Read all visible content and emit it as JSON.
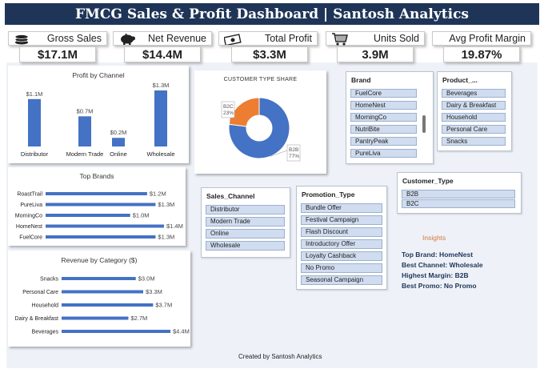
{
  "header": {
    "title": "FMCG Sales & Profit Dashboard | Santosh Analytics"
  },
  "kpis": [
    {
      "label": "Gross Sales",
      "value": "$17.1M",
      "icon": "coins-icon"
    },
    {
      "label": "Net Revenue",
      "value": "$14.4M",
      "icon": "piggy-bank-icon"
    },
    {
      "label": "Total Profit",
      "value": "$3.3M",
      "icon": "cash-icon"
    },
    {
      "label": "Units Sold",
      "value": "3.9M",
      "icon": "cart-icon"
    },
    {
      "label": "Avg Profit Margin",
      "value": "19.87%",
      "icon": ""
    }
  ],
  "profit_by_channel": {
    "title": "Profit by Channel",
    "categories": [
      "Distributor",
      "Modern Trade",
      "Online",
      "Wholesale"
    ],
    "values": [
      1.1,
      0.7,
      0.2,
      1.3
    ],
    "labels": [
      "$1.1M",
      "$0.7M",
      "$0.2M",
      "$1.3M"
    ]
  },
  "customer_type_share": {
    "title": "CUSTOMER TYPE SHARE",
    "slices": [
      {
        "name": "B2B",
        "value": 77,
        "label_name": "B2B",
        "label_pct": "77%",
        "color": "#4472c4"
      },
      {
        "name": "B2C",
        "value": 23,
        "label_name": "B2C",
        "label_pct": "23%",
        "color": "#ed7d31"
      }
    ]
  },
  "top_brands": {
    "title": "Top Brands",
    "categories": [
      "RoastTrail",
      "PureLiva",
      "MorningCo",
      "HomeNest",
      "FuelCore"
    ],
    "values": [
      1.2,
      1.3,
      1.0,
      1.4,
      1.3
    ],
    "labels": [
      "$1.2M",
      "$1.3M",
      "$1.0M",
      "$1.4M",
      "$1.3M"
    ]
  },
  "revenue_by_category": {
    "title": "Revenue by Category ($)",
    "categories": [
      "Snacks",
      "Personal Care",
      "Household",
      "Dairy & Breakfast",
      "Beverages"
    ],
    "values": [
      3.0,
      3.3,
      3.7,
      2.7,
      4.4
    ],
    "labels": [
      "$3.0M",
      "$3.3M",
      "$3.7M",
      "$2.7M",
      "$4.4M"
    ]
  },
  "chart_data": [
    {
      "type": "bar",
      "title": "Profit by Channel",
      "categories": [
        "Distributor",
        "Modern Trade",
        "Online",
        "Wholesale"
      ],
      "values": [
        1.1,
        0.7,
        0.2,
        1.3
      ],
      "data_labels": [
        "$1.1M",
        "$0.7M",
        "$0.2M",
        "$1.3M"
      ]
    },
    {
      "type": "pie",
      "title": "CUSTOMER TYPE SHARE",
      "categories": [
        "B2B",
        "B2C"
      ],
      "values": [
        77,
        23
      ]
    },
    {
      "type": "bar",
      "orientation": "horizontal",
      "title": "Top Brands",
      "categories": [
        "RoastTrail",
        "PureLiva",
        "MorningCo",
        "HomeNest",
        "FuelCore"
      ],
      "values": [
        1.2,
        1.3,
        1.0,
        1.4,
        1.3
      ],
      "data_labels": [
        "$1.2M",
        "$1.3M",
        "$1.0M",
        "$1.4M",
        "$1.3M"
      ]
    },
    {
      "type": "bar",
      "orientation": "horizontal",
      "title": "Revenue by Category ($)",
      "categories": [
        "Snacks",
        "Personal Care",
        "Household",
        "Dairy & Breakfast",
        "Beverages"
      ],
      "values": [
        3.0,
        3.3,
        3.7,
        2.7,
        4.4
      ],
      "data_labels": [
        "$3.0M",
        "$3.3M",
        "$3.7M",
        "$2.7M",
        "$4.4M"
      ]
    }
  ],
  "slicers": {
    "brand": {
      "title": "Brand",
      "items": [
        "FuelCore",
        "HomeNest",
        "MorningCo",
        "NutriBite",
        "PantryPeak",
        "PureLiva"
      ]
    },
    "product": {
      "title": "Product_...",
      "items": [
        "Beverages",
        "Dairy & Breakfast",
        "Household",
        "Personal Care",
        "Snacks"
      ]
    },
    "customer_type": {
      "title": "Customer_Type",
      "items": [
        "B2B",
        "B2C"
      ]
    },
    "sales_channel": {
      "title": "Sales_Channel",
      "items": [
        "Distributor",
        "Modern Trade",
        "Online",
        "Wholesale"
      ]
    },
    "promotion_type": {
      "title": "Promotion_Type",
      "items": [
        "Bundle Offer",
        "Festival Campaign",
        "Flash Discount",
        "Introductory Offer",
        "Loyalty Cashback",
        "No Promo",
        "Seasonal Campaign"
      ]
    }
  },
  "insights": {
    "title": "Insights",
    "lines": [
      "Top Brand: HomeNest",
      "Best Channel: Wholesale",
      "Highest Margin: B2B",
      "Best Promo: No Promo"
    ]
  },
  "footer": {
    "text": "Created by Santosh Analytics"
  },
  "colors": {
    "header": "#1f3558",
    "bar": "#4472c4",
    "accent_orange": "#ed7d31",
    "slicer_item": "#d0dcef"
  }
}
